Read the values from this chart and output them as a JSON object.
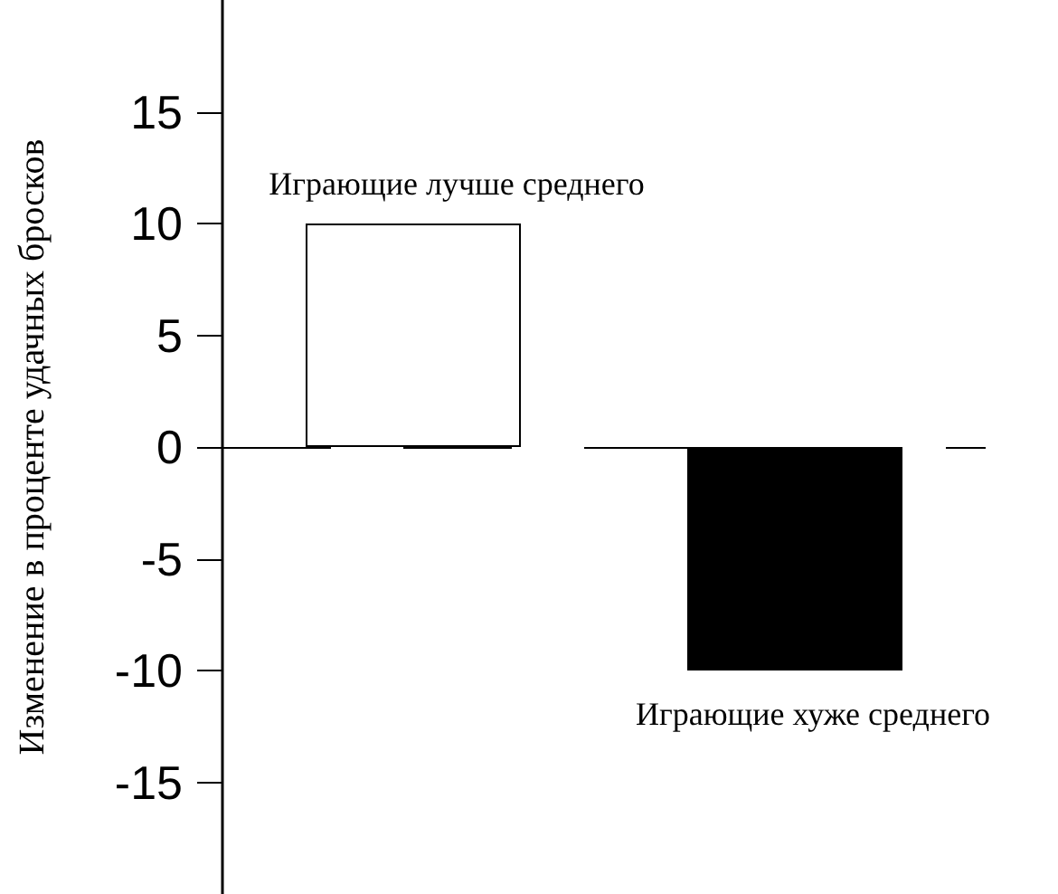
{
  "chart_data": {
    "type": "bar",
    "ylabel": "Изменение в проценте удачных бросков",
    "categories": [
      "Играющие лучше среднего",
      "Играющие хуже среднего"
    ],
    "values": [
      10,
      -10
    ],
    "colors": [
      "#ffffff",
      "#000000"
    ],
    "ylim": [
      -20,
      20
    ],
    "yticks": [
      -15,
      -10,
      -5,
      0,
      5,
      10,
      15
    ],
    "grid": false,
    "ref_lines": [
      {
        "axis": "y",
        "value": 0,
        "line_style": "dashed"
      }
    ],
    "tick_labels": "y"
  }
}
